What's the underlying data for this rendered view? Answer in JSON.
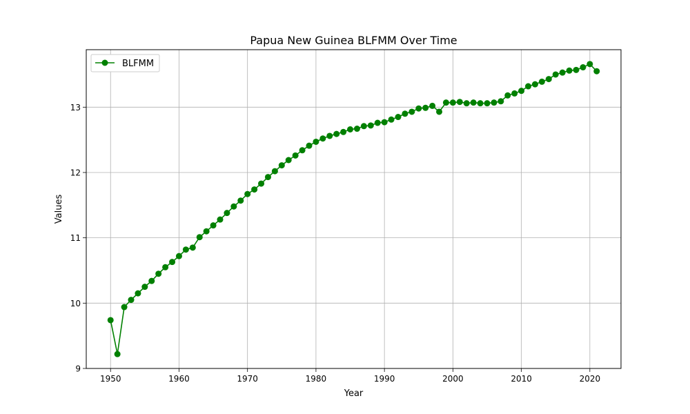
{
  "chart_data": {
    "type": "line",
    "title": "Papua New Guinea BLFMM Over Time",
    "xlabel": "Year",
    "ylabel": "Values",
    "xlim": [
      1946.45,
      2024.55
    ],
    "ylim": [
      9.0,
      13.88
    ],
    "xticks": [
      1950,
      1960,
      1970,
      1980,
      1990,
      2000,
      2010,
      2020
    ],
    "yticks": [
      9,
      10,
      11,
      12,
      13
    ],
    "grid": true,
    "legend_position": "upper-left",
    "series": [
      {
        "name": "BLFMM",
        "color": "#008000",
        "marker": "circle",
        "x": [
          1950,
          1951,
          1952,
          1953,
          1954,
          1955,
          1956,
          1957,
          1958,
          1959,
          1960,
          1961,
          1962,
          1963,
          1964,
          1965,
          1966,
          1967,
          1968,
          1969,
          1970,
          1971,
          1972,
          1973,
          1974,
          1975,
          1976,
          1977,
          1978,
          1979,
          1980,
          1981,
          1982,
          1983,
          1984,
          1985,
          1986,
          1987,
          1988,
          1989,
          1990,
          1991,
          1992,
          1993,
          1994,
          1995,
          1996,
          1997,
          1998,
          1999,
          2000,
          2001,
          2002,
          2003,
          2004,
          2005,
          2006,
          2007,
          2008,
          2009,
          2010,
          2011,
          2012,
          2013,
          2014,
          2015,
          2016,
          2017,
          2018,
          2019,
          2020,
          2021
        ],
        "values": [
          9.74,
          9.22,
          9.94,
          10.05,
          10.15,
          10.25,
          10.34,
          10.45,
          10.55,
          10.63,
          10.72,
          10.82,
          10.85,
          11.01,
          11.1,
          11.19,
          11.28,
          11.38,
          11.48,
          11.57,
          11.67,
          11.74,
          11.83,
          11.93,
          12.02,
          12.11,
          12.19,
          12.26,
          12.34,
          12.41,
          12.47,
          12.52,
          12.56,
          12.59,
          12.62,
          12.66,
          12.67,
          12.71,
          12.72,
          12.76,
          12.77,
          12.81,
          12.85,
          12.9,
          12.93,
          12.98,
          12.99,
          13.02,
          12.93,
          13.07,
          13.07,
          13.08,
          13.06,
          13.07,
          13.06,
          13.06,
          13.07,
          13.09,
          13.18,
          13.21,
          13.25,
          13.32,
          13.35,
          13.39,
          13.43,
          13.5,
          13.53,
          13.56,
          13.57,
          13.61,
          13.66,
          13.55
        ]
      }
    ]
  }
}
